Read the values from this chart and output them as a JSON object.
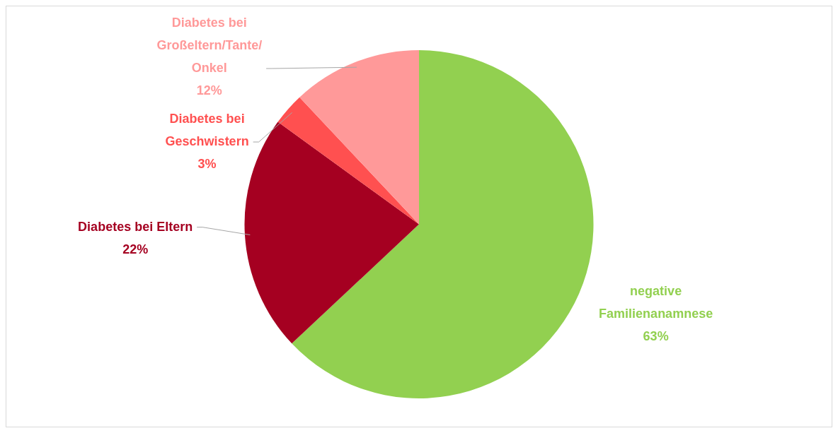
{
  "chart_data": {
    "type": "pie",
    "categories": [
      "negative Familienanamnese",
      "Diabetes bei Eltern",
      "Diabetes bei Geschwistern",
      "Diabetes bei Großeltern/Tante/Onkel"
    ],
    "values": [
      63,
      22,
      3,
      12
    ],
    "colors": [
      "#92d050",
      "#a50021",
      "#ff5050",
      "#ff9999"
    ],
    "value_labels": [
      "63%",
      "22%",
      "3%",
      "12%"
    ],
    "legend": false
  }
}
